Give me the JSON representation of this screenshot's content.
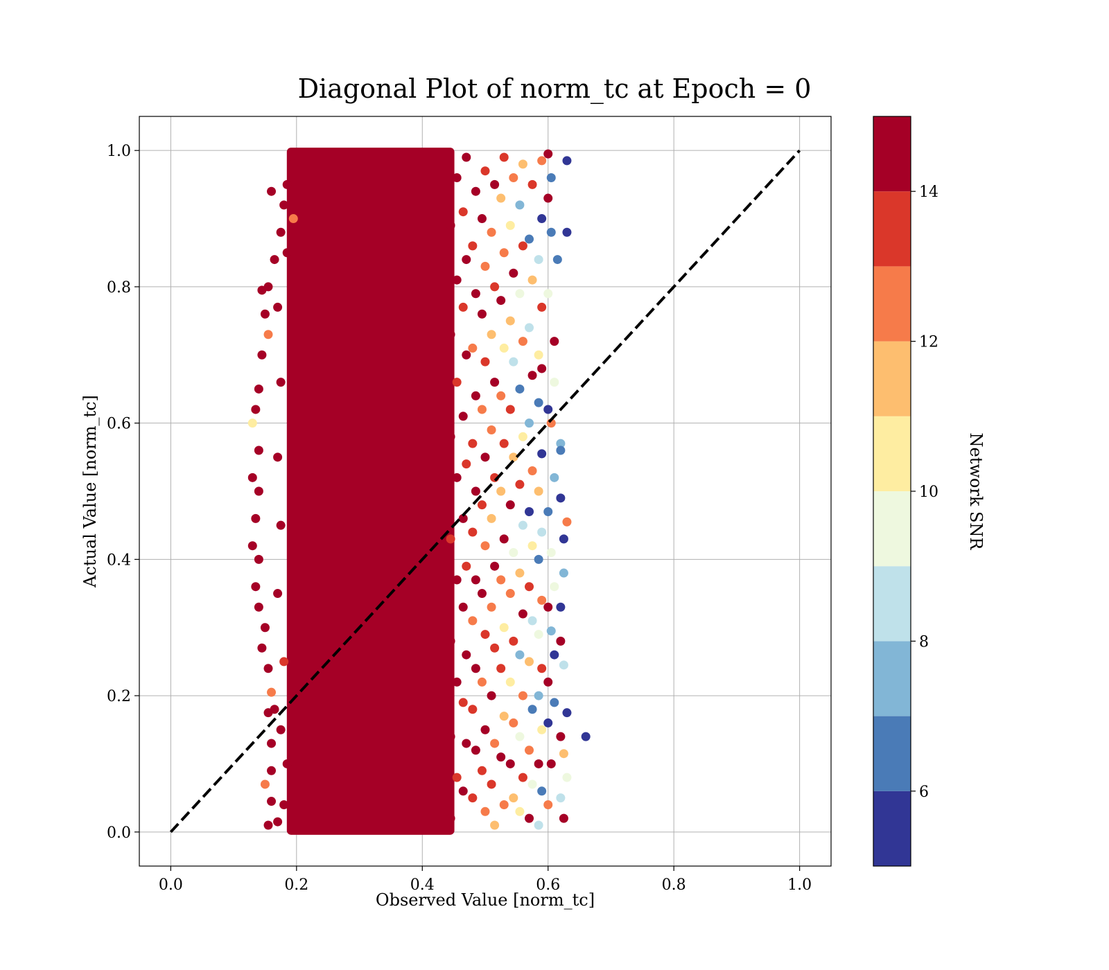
{
  "chart_data": {
    "type": "scatter",
    "title": "Diagonal Plot of norm_tc at Epoch = 0",
    "xlabel": "Observed Value [norm_tc]",
    "ylabel": "Actual Value [norm_tc]",
    "xlim": [
      -0.05,
      1.05
    ],
    "ylim": [
      -0.05,
      1.05
    ],
    "xticks": [
      0.0,
      0.2,
      0.4,
      0.6,
      0.8,
      1.0
    ],
    "yticks": [
      0.0,
      0.2,
      0.4,
      0.6,
      0.8,
      1.0
    ],
    "xtick_labels": [
      "0.0",
      "0.2",
      "0.4",
      "0.6",
      "0.8",
      "1.0"
    ],
    "ytick_labels": [
      "0.0",
      "0.2",
      "0.4",
      "0.6",
      "0.8",
      "1.0"
    ],
    "grid": true,
    "reference_line": {
      "style": "dashed",
      "color": "#000000",
      "points": [
        [
          0.0,
          0.0
        ],
        [
          1.0,
          1.0
        ]
      ]
    },
    "colorbar": {
      "label": "Network SNR",
      "range": [
        5,
        15
      ],
      "ticks": [
        6,
        8,
        10,
        12,
        14
      ],
      "tick_labels": [
        "6",
        "8",
        "10",
        "12",
        "14"
      ],
      "colormap": "RdYlBu_r",
      "bins": [
        {
          "from": 5,
          "to": 6,
          "color": "#313695"
        },
        {
          "from": 6,
          "to": 7,
          "color": "#4a7bb7"
        },
        {
          "from": 7,
          "to": 8,
          "color": "#82b6d6"
        },
        {
          "from": 8,
          "to": 9,
          "color": "#bfe1ea"
        },
        {
          "from": 9,
          "to": 10,
          "color": "#eef8df"
        },
        {
          "from": 10,
          "to": 11,
          "color": "#feeda1"
        },
        {
          "from": 11,
          "to": 12,
          "color": "#fdbe6f"
        },
        {
          "from": 12,
          "to": 13,
          "color": "#f67b4a"
        },
        {
          "from": 13,
          "to": 14,
          "color": "#da372a"
        },
        {
          "from": 14,
          "to": 15,
          "color": "#a50026"
        }
      ]
    },
    "dense_region": {
      "x_range": [
        0.2,
        0.44
      ],
      "y_range": [
        0.0,
        1.0
      ],
      "snr": 15
    },
    "points": [
      [
        0.66,
        0.14,
        5
      ],
      [
        0.63,
        0.985,
        5
      ],
      [
        0.63,
        0.88,
        5.5
      ],
      [
        0.62,
        0.57,
        7
      ],
      [
        0.62,
        0.56,
        6
      ],
      [
        0.615,
        0.84,
        6.5
      ],
      [
        0.625,
        0.38,
        7.5
      ],
      [
        0.62,
        0.33,
        5.5
      ],
      [
        0.625,
        0.245,
        8.5
      ],
      [
        0.63,
        0.455,
        12.5
      ],
      [
        0.625,
        0.43,
        5
      ],
      [
        0.62,
        0.49,
        5
      ],
      [
        0.62,
        0.28,
        14.5
      ],
      [
        0.63,
        0.175,
        5
      ],
      [
        0.62,
        0.14,
        14
      ],
      [
        0.625,
        0.115,
        11
      ],
      [
        0.63,
        0.08,
        9.5
      ],
      [
        0.625,
        0.02,
        14.5
      ],
      [
        0.62,
        0.05,
        8.5
      ],
      [
        0.605,
        0.96,
        6
      ],
      [
        0.6,
        0.995,
        14.5
      ],
      [
        0.605,
        0.88,
        6
      ],
      [
        0.6,
        0.79,
        9
      ],
      [
        0.61,
        0.66,
        9.5
      ],
      [
        0.605,
        0.6,
        12
      ],
      [
        0.6,
        0.62,
        5
      ],
      [
        0.61,
        0.52,
        7
      ],
      [
        0.6,
        0.47,
        6
      ],
      [
        0.605,
        0.41,
        9
      ],
      [
        0.61,
        0.36,
        9.5
      ],
      [
        0.6,
        0.33,
        14.5
      ],
      [
        0.605,
        0.295,
        7.5
      ],
      [
        0.61,
        0.26,
        5
      ],
      [
        0.6,
        0.22,
        14
      ],
      [
        0.61,
        0.19,
        6.5
      ],
      [
        0.6,
        0.16,
        5
      ],
      [
        0.605,
        0.1,
        14.5
      ],
      [
        0.6,
        0.04,
        12.5
      ],
      [
        0.61,
        0.72,
        14.5
      ],
      [
        0.6,
        0.93,
        14
      ],
      [
        0.59,
        0.985,
        12.5
      ],
      [
        0.59,
        0.9,
        5
      ],
      [
        0.585,
        0.84,
        8
      ],
      [
        0.59,
        0.77,
        13
      ],
      [
        0.585,
        0.7,
        10.5
      ],
      [
        0.59,
        0.68,
        14.5
      ],
      [
        0.585,
        0.63,
        6.5
      ],
      [
        0.59,
        0.555,
        5
      ],
      [
        0.585,
        0.5,
        11
      ],
      [
        0.59,
        0.44,
        8.5
      ],
      [
        0.585,
        0.4,
        6
      ],
      [
        0.59,
        0.34,
        12.5
      ],
      [
        0.585,
        0.29,
        9
      ],
      [
        0.59,
        0.24,
        13
      ],
      [
        0.585,
        0.2,
        7
      ],
      [
        0.59,
        0.15,
        10
      ],
      [
        0.585,
        0.1,
        14
      ],
      [
        0.59,
        0.06,
        6.5
      ],
      [
        0.585,
        0.01,
        8
      ],
      [
        0.575,
        0.95,
        13
      ],
      [
        0.57,
        0.87,
        6
      ],
      [
        0.575,
        0.81,
        11.5
      ],
      [
        0.57,
        0.74,
        8.5
      ],
      [
        0.575,
        0.67,
        14
      ],
      [
        0.57,
        0.6,
        7.5
      ],
      [
        0.575,
        0.53,
        12
      ],
      [
        0.57,
        0.47,
        5.5
      ],
      [
        0.575,
        0.42,
        10.5
      ],
      [
        0.57,
        0.36,
        13.5
      ],
      [
        0.575,
        0.31,
        8
      ],
      [
        0.57,
        0.25,
        11.5
      ],
      [
        0.575,
        0.18,
        6
      ],
      [
        0.57,
        0.12,
        12.5
      ],
      [
        0.575,
        0.07,
        9.5
      ],
      [
        0.57,
        0.02,
        14
      ],
      [
        0.56,
        0.98,
        11
      ],
      [
        0.555,
        0.92,
        7
      ],
      [
        0.56,
        0.86,
        13
      ],
      [
        0.555,
        0.79,
        9
      ],
      [
        0.56,
        0.72,
        12
      ],
      [
        0.555,
        0.65,
        6.5
      ],
      [
        0.56,
        0.58,
        10.5
      ],
      [
        0.555,
        0.51,
        13.5
      ],
      [
        0.56,
        0.45,
        8
      ],
      [
        0.555,
        0.38,
        11.5
      ],
      [
        0.56,
        0.32,
        14
      ],
      [
        0.555,
        0.26,
        7.5
      ],
      [
        0.56,
        0.2,
        12
      ],
      [
        0.555,
        0.14,
        9
      ],
      [
        0.56,
        0.08,
        13
      ],
      [
        0.555,
        0.03,
        10.5
      ],
      [
        0.545,
        0.96,
        12.5
      ],
      [
        0.54,
        0.89,
        10
      ],
      [
        0.545,
        0.82,
        14
      ],
      [
        0.54,
        0.75,
        11
      ],
      [
        0.545,
        0.69,
        8.5
      ],
      [
        0.54,
        0.62,
        13
      ],
      [
        0.545,
        0.55,
        11.5
      ],
      [
        0.54,
        0.48,
        14.5
      ],
      [
        0.545,
        0.41,
        9.5
      ],
      [
        0.54,
        0.35,
        12
      ],
      [
        0.545,
        0.28,
        13.5
      ],
      [
        0.54,
        0.22,
        10.5
      ],
      [
        0.545,
        0.16,
        12.5
      ],
      [
        0.54,
        0.1,
        14
      ],
      [
        0.545,
        0.05,
        11
      ],
      [
        0.53,
        0.99,
        13.5
      ],
      [
        0.525,
        0.93,
        11.5
      ],
      [
        0.53,
        0.85,
        12.5
      ],
      [
        0.525,
        0.78,
        14
      ],
      [
        0.53,
        0.71,
        10.5
      ],
      [
        0.525,
        0.64,
        12
      ],
      [
        0.53,
        0.57,
        13.5
      ],
      [
        0.525,
        0.5,
        11
      ],
      [
        0.53,
        0.43,
        14.5
      ],
      [
        0.525,
        0.37,
        12.5
      ],
      [
        0.53,
        0.3,
        10
      ],
      [
        0.525,
        0.24,
        13
      ],
      [
        0.53,
        0.17,
        11.5
      ],
      [
        0.525,
        0.11,
        14
      ],
      [
        0.53,
        0.04,
        12
      ],
      [
        0.515,
        0.95,
        14.5
      ],
      [
        0.51,
        0.88,
        12
      ],
      [
        0.515,
        0.8,
        13
      ],
      [
        0.51,
        0.73,
        11
      ],
      [
        0.515,
        0.66,
        14
      ],
      [
        0.51,
        0.59,
        12.5
      ],
      [
        0.515,
        0.52,
        13.5
      ],
      [
        0.51,
        0.46,
        11.5
      ],
      [
        0.515,
        0.39,
        14.5
      ],
      [
        0.51,
        0.33,
        12
      ],
      [
        0.515,
        0.27,
        13
      ],
      [
        0.51,
        0.2,
        14
      ],
      [
        0.515,
        0.13,
        12.5
      ],
      [
        0.51,
        0.07,
        13.5
      ],
      [
        0.515,
        0.01,
        11
      ],
      [
        0.5,
        0.97,
        13
      ],
      [
        0.495,
        0.9,
        14.5
      ],
      [
        0.5,
        0.83,
        12.5
      ],
      [
        0.495,
        0.76,
        14
      ],
      [
        0.5,
        0.69,
        13.5
      ],
      [
        0.495,
        0.62,
        12
      ],
      [
        0.5,
        0.55,
        14.5
      ],
      [
        0.495,
        0.48,
        13
      ],
      [
        0.5,
        0.42,
        12.5
      ],
      [
        0.495,
        0.35,
        14
      ],
      [
        0.5,
        0.29,
        13.5
      ],
      [
        0.495,
        0.22,
        12
      ],
      [
        0.5,
        0.15,
        14.5
      ],
      [
        0.495,
        0.09,
        13
      ],
      [
        0.5,
        0.03,
        12.5
      ],
      [
        0.485,
        0.94,
        14
      ],
      [
        0.48,
        0.86,
        13
      ],
      [
        0.485,
        0.79,
        14.5
      ],
      [
        0.48,
        0.71,
        12.5
      ],
      [
        0.485,
        0.64,
        14
      ],
      [
        0.48,
        0.57,
        13.5
      ],
      [
        0.485,
        0.5,
        14.5
      ],
      [
        0.48,
        0.44,
        13
      ],
      [
        0.485,
        0.37,
        14
      ],
      [
        0.48,
        0.31,
        12.5
      ],
      [
        0.485,
        0.24,
        14.5
      ],
      [
        0.48,
        0.18,
        13.5
      ],
      [
        0.485,
        0.12,
        14
      ],
      [
        0.48,
        0.05,
        13
      ],
      [
        0.47,
        0.99,
        14.5
      ],
      [
        0.465,
        0.91,
        13.5
      ],
      [
        0.47,
        0.84,
        14
      ],
      [
        0.465,
        0.77,
        13
      ],
      [
        0.47,
        0.7,
        14.5
      ],
      [
        0.465,
        0.61,
        14
      ],
      [
        0.47,
        0.54,
        13.5
      ],
      [
        0.465,
        0.46,
        14.5
      ],
      [
        0.47,
        0.39,
        13
      ],
      [
        0.465,
        0.33,
        14
      ],
      [
        0.47,
        0.26,
        14.5
      ],
      [
        0.465,
        0.19,
        13.5
      ],
      [
        0.47,
        0.13,
        14
      ],
      [
        0.465,
        0.06,
        14.5
      ],
      [
        0.455,
        0.96,
        14
      ],
      [
        0.455,
        0.81,
        14.5
      ],
      [
        0.455,
        0.66,
        13.5
      ],
      [
        0.455,
        0.52,
        14.5
      ],
      [
        0.455,
        0.37,
        14
      ],
      [
        0.455,
        0.22,
        14.5
      ],
      [
        0.455,
        0.08,
        13.5
      ],
      [
        0.445,
        0.89,
        14.5
      ],
      [
        0.445,
        0.73,
        14
      ],
      [
        0.445,
        0.58,
        14.5
      ],
      [
        0.445,
        0.43,
        13.5
      ],
      [
        0.445,
        0.28,
        14.5
      ],
      [
        0.445,
        0.14,
        14
      ],
      [
        0.445,
        0.02,
        14.5
      ],
      [
        0.195,
        0.98,
        14.5
      ],
      [
        0.18,
        0.92,
        14.5
      ],
      [
        0.16,
        0.94,
        14.5
      ],
      [
        0.175,
        0.88,
        14.5
      ],
      [
        0.165,
        0.84,
        14.5
      ],
      [
        0.155,
        0.8,
        14.5
      ],
      [
        0.145,
        0.795,
        14.5
      ],
      [
        0.15,
        0.76,
        14
      ],
      [
        0.145,
        0.7,
        14.5
      ],
      [
        0.155,
        0.73,
        12.5
      ],
      [
        0.14,
        0.65,
        14.5
      ],
      [
        0.135,
        0.62,
        14.5
      ],
      [
        0.13,
        0.6,
        10.5
      ],
      [
        0.14,
        0.56,
        14.5
      ],
      [
        0.13,
        0.52,
        14.5
      ],
      [
        0.14,
        0.5,
        14.5
      ],
      [
        0.135,
        0.46,
        14.5
      ],
      [
        0.13,
        0.42,
        14.5
      ],
      [
        0.14,
        0.4,
        14.5
      ],
      [
        0.135,
        0.36,
        14.5
      ],
      [
        0.14,
        0.33,
        14.5
      ],
      [
        0.15,
        0.3,
        14.5
      ],
      [
        0.145,
        0.27,
        14.5
      ],
      [
        0.155,
        0.24,
        14.5
      ],
      [
        0.16,
        0.205,
        12.5
      ],
      [
        0.165,
        0.18,
        14.5
      ],
      [
        0.155,
        0.175,
        14.5
      ],
      [
        0.16,
        0.13,
        14.5
      ],
      [
        0.16,
        0.09,
        14.5
      ],
      [
        0.15,
        0.07,
        12.5
      ],
      [
        0.16,
        0.045,
        14.5
      ],
      [
        0.155,
        0.01,
        14.5
      ],
      [
        0.17,
        0.015,
        14.5
      ],
      [
        0.18,
        0.04,
        14.5
      ],
      [
        0.185,
        0.1,
        14.5
      ],
      [
        0.175,
        0.15,
        14.5
      ],
      [
        0.18,
        0.25,
        13
      ],
      [
        0.17,
        0.35,
        14.5
      ],
      [
        0.175,
        0.45,
        14.5
      ],
      [
        0.17,
        0.55,
        14.5
      ],
      [
        0.175,
        0.66,
        14.5
      ],
      [
        0.17,
        0.77,
        14.5
      ],
      [
        0.185,
        0.85,
        14.5
      ],
      [
        0.185,
        0.95,
        14.5
      ],
      [
        0.195,
        0.9,
        12.5
      ]
    ]
  }
}
